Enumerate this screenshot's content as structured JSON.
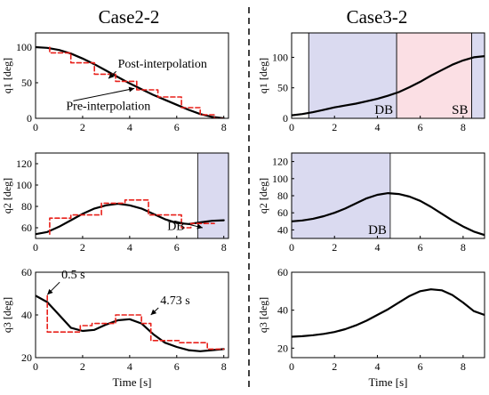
{
  "columns": [
    {
      "title": "Case2-2"
    },
    {
      "title": "Case3-2"
    }
  ],
  "colors": {
    "curve": "#000000",
    "pre": "#e8201a",
    "db_shade": "#dadaf0",
    "sb_shade": "#fbdfe4"
  },
  "chart_data": [
    {
      "id": "case2-2-q1",
      "type": "line",
      "xlim": [
        0,
        8.2
      ],
      "ylim": [
        0,
        120
      ],
      "xticks": [
        "0",
        "2",
        "4",
        "6",
        "8"
      ],
      "yticks": [
        "0",
        "50",
        "100"
      ],
      "ylabel": "q1 [deg]",
      "xlabel": "",
      "regions": [],
      "series": [
        {
          "name": "Post-interpolation",
          "style": "solid",
          "x": [
            0,
            0.5,
            1,
            1.5,
            2,
            2.5,
            3,
            3.5,
            4,
            4.5,
            5,
            5.5,
            6,
            6.5,
            7,
            7.5,
            8
          ],
          "y": [
            100,
            99,
            96,
            91,
            84,
            76,
            67,
            58,
            49,
            41,
            33,
            26,
            19,
            12,
            6,
            2,
            0
          ]
        },
        {
          "name": "Pre-interpolation",
          "style": "dashed",
          "x": [
            0.6,
            0.6,
            1.5,
            1.5,
            2.5,
            2.5,
            3.4,
            3.4,
            4.3,
            4.3,
            5.2,
            5.2,
            6.2,
            6.2,
            7,
            7,
            7.6,
            7.6,
            8
          ],
          "y": [
            100,
            92,
            92,
            78,
            78,
            62,
            62,
            52,
            52,
            40,
            40,
            30,
            30,
            15,
            15,
            5,
            5,
            0,
            0
          ]
        }
      ],
      "annotations": [
        {
          "text": "Post-interpolation",
          "x": 3.5,
          "y": 71,
          "target_x": 3.1,
          "target_y": 56
        },
        {
          "text": "Pre-interpolation",
          "x": 1.3,
          "y": 12,
          "target_x": 4.2,
          "target_y": 42
        }
      ]
    },
    {
      "id": "case3-2-q1",
      "type": "line",
      "xlim": [
        0,
        9
      ],
      "ylim": [
        0,
        140
      ],
      "xticks": [
        "0",
        "2",
        "4",
        "6",
        "8"
      ],
      "yticks": [
        "0",
        "50",
        "100"
      ],
      "ylabel": "q1 [deg]",
      "xlabel": "",
      "regions": [
        {
          "label": "",
          "x0": 0,
          "x1": 0.8,
          "kind": "white"
        },
        {
          "label": "DB",
          "x0": 0.8,
          "x1": 4.9,
          "kind": "db"
        },
        {
          "label": "SB",
          "x0": 4.9,
          "x1": 8.4,
          "kind": "sb"
        },
        {
          "label": "",
          "x0": 8.4,
          "x1": 9,
          "kind": "db"
        }
      ],
      "series": [
        {
          "name": "",
          "style": "solid",
          "x": [
            0,
            0.5,
            1,
            1.5,
            2,
            2.5,
            3,
            3.5,
            4,
            4.5,
            5,
            5.5,
            6,
            6.5,
            7,
            7.5,
            8,
            8.5,
            9
          ],
          "y": [
            5,
            7,
            10,
            14,
            18,
            21,
            24,
            28,
            32,
            37,
            43,
            51,
            60,
            70,
            79,
            88,
            95,
            100,
            102
          ]
        }
      ],
      "annotations": []
    },
    {
      "id": "case2-2-q2",
      "type": "line",
      "xlim": [
        0,
        8.2
      ],
      "ylim": [
        50,
        130
      ],
      "xticks": [
        "0",
        "2",
        "4",
        "6",
        "8"
      ],
      "yticks": [
        "60",
        "80",
        "100",
        "120"
      ],
      "ylabel": "q2 [deg]",
      "xlabel": "",
      "regions": [
        {
          "label": "",
          "x0": 6.9,
          "x1": 8.2,
          "kind": "db"
        }
      ],
      "series": [
        {
          "name": "",
          "style": "solid",
          "x": [
            0,
            0.5,
            1,
            1.5,
            2,
            2.5,
            3,
            3.5,
            4,
            4.5,
            5,
            5.5,
            6,
            6.5,
            7,
            7.5,
            8
          ],
          "y": [
            54,
            56,
            61,
            67,
            73,
            78,
            81,
            82.5,
            81,
            78,
            73,
            68,
            64.5,
            63.5,
            65,
            66.5,
            67
          ]
        },
        {
          "name": "",
          "style": "dashed",
          "x": [
            0.6,
            0.6,
            1.5,
            1.5,
            2.8,
            2.8,
            3.8,
            3.8,
            4.8,
            4.8,
            6.2,
            6.2,
            6.6,
            6.6,
            7.6
          ],
          "y": [
            54,
            69,
            69,
            72,
            72,
            83,
            83,
            86,
            86,
            72,
            72,
            60,
            60,
            64,
            64
          ]
        }
      ],
      "annotations": [
        {
          "text": "DB",
          "x": 5.6,
          "y": 58,
          "target_x": 7.1,
          "target_y": 60
        }
      ]
    },
    {
      "id": "case3-2-q2",
      "type": "line",
      "xlim": [
        0,
        9
      ],
      "ylim": [
        30,
        130
      ],
      "xticks": [
        "0",
        "2",
        "4",
        "6",
        "8"
      ],
      "yticks": [
        "40",
        "60",
        "80",
        "100",
        "120"
      ],
      "ylabel": "q2 [deg]",
      "xlabel": "",
      "regions": [
        {
          "label": "DB",
          "x0": 0,
          "x1": 4.6,
          "kind": "db"
        }
      ],
      "series": [
        {
          "name": "",
          "style": "solid",
          "x": [
            0,
            0.5,
            1,
            1.5,
            2,
            2.5,
            3,
            3.5,
            4,
            4.5,
            5,
            5.5,
            6,
            6.5,
            7,
            7.5,
            8,
            8.5,
            9
          ],
          "y": [
            50,
            51,
            53,
            56,
            60,
            65,
            71,
            77,
            81,
            83,
            82,
            79,
            74,
            67,
            59,
            51,
            44,
            38,
            34
          ]
        }
      ],
      "annotations": []
    },
    {
      "id": "case2-2-q3",
      "type": "line",
      "xlim": [
        0,
        8.2
      ],
      "ylim": [
        20,
        60
      ],
      "xticks": [
        "0",
        "2",
        "4",
        "6",
        "8"
      ],
      "yticks": [
        "20",
        "40",
        "60"
      ],
      "ylabel": "q3 [deg]",
      "xlabel": "Time [s]",
      "regions": [],
      "series": [
        {
          "name": "",
          "style": "solid",
          "x": [
            0,
            0.5,
            1,
            1.5,
            2,
            2.5,
            3,
            3.5,
            4,
            4.5,
            5,
            5.5,
            6,
            6.5,
            7,
            7.5,
            8
          ],
          "y": [
            49,
            46,
            40,
            34,
            32.5,
            33,
            35.5,
            37.5,
            38,
            36,
            31,
            27,
            25,
            23.5,
            23,
            23.5,
            24
          ]
        },
        {
          "name": "",
          "style": "dashed",
          "x": [
            0.5,
            0.5,
            1.9,
            1.9,
            2.4,
            2.4,
            3.4,
            3.4,
            4.5,
            4.5,
            4.9,
            4.9,
            6.1,
            6.1,
            7.3,
            7.3,
            8
          ],
          "y": [
            49,
            32,
            32,
            35,
            35,
            36,
            36,
            40,
            40,
            36,
            36,
            28,
            28,
            27,
            27,
            24,
            24
          ]
        }
      ],
      "annotations": [
        {
          "text": "0.5 s",
          "x": 1.1,
          "y": 57,
          "target_x": 0.5,
          "target_y": 49.5
        },
        {
          "text": "4.73 s",
          "x": 5.3,
          "y": 45,
          "target_x": 4.9,
          "target_y": 40
        }
      ]
    },
    {
      "id": "case3-2-q3",
      "type": "line",
      "xlim": [
        0,
        9
      ],
      "ylim": [
        15,
        60
      ],
      "xticks": [
        "0",
        "2",
        "4",
        "6",
        "8"
      ],
      "yticks": [
        "20",
        "40",
        "60"
      ],
      "ylabel": "q3 [deg]",
      "xlabel": "Time [s]",
      "regions": [],
      "series": [
        {
          "name": "",
          "style": "solid",
          "x": [
            0,
            0.5,
            1,
            1.5,
            2,
            2.5,
            3,
            3.5,
            4,
            4.5,
            5,
            5.5,
            6,
            6.5,
            7,
            7.5,
            8,
            8.5,
            9
          ],
          "y": [
            26,
            26.3,
            26.8,
            27.5,
            28.5,
            30,
            32,
            34.5,
            37.5,
            40.5,
            44,
            47.5,
            50,
            51,
            50.5,
            48,
            44,
            39.5,
            37.5
          ]
        }
      ],
      "annotations": []
    }
  ]
}
